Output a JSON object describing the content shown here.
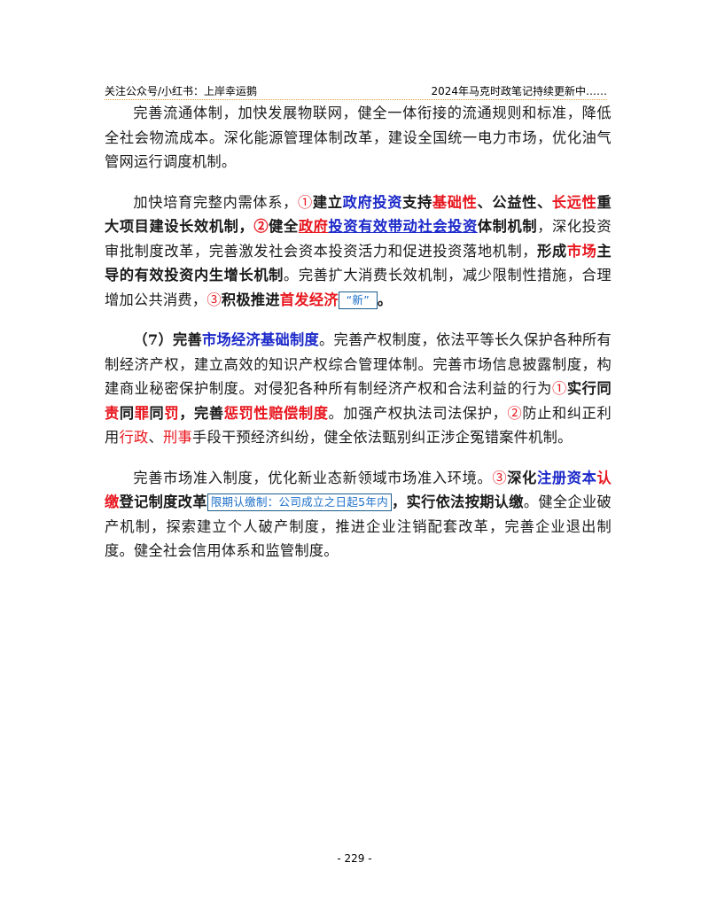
{
  "header": {
    "left": "关注公众号/小红书：上岸幸运鹅",
    "right": "2024年马克时政笔记持续更新中……"
  },
  "p1": {
    "text": "完善流通体制，加快发展物联网，健全一体衔接的流通规则和标准，降低全社会物流成本。深化能源管理体制改革，建设全国统一电力市场，优化油气管网运行调度机制。"
  },
  "p2": {
    "s1": "加快培育完整内需体系，",
    "m1": "①",
    "s2": "建立",
    "s3": "政府投资",
    "s4": "支持",
    "s5": "基础性",
    "s6": "、公益性、",
    "s7": "长远性",
    "s8": "重大项目建设长效机制，",
    "m2": "②",
    "s9": "健全",
    "s10": "政府",
    "s11": "投资有效带动社会投资",
    "s12": "体制机制",
    "s13": "，深化投资审批制度改革，完善激发社会资本投资活力和促进投资落地机制，",
    "s14": "形成",
    "s15": "市场",
    "s16": "主导的有效投资内生增长机制",
    "s17": "。完善扩大消费长效机制，减少限制性措施，合理增加公共消费，",
    "m3": "③",
    "s18": "积极推进",
    "s19": "首发经济",
    "note": "“新”",
    "s20": "。"
  },
  "p3": {
    "s1": "（7）完善",
    "s2": "市场经济基础制度",
    "s3": "。完善产权制度，依法平等长久保护各种所有制经济产权，建立高效的知识产权综合管理体制。完善市场信息披露制度，构建商业秘密保护制度。对侵犯各种所有制经济产权和合法利益的行为",
    "m1": "①",
    "s4": "实行同",
    "s5": "责",
    "s6": "同",
    "s7": "罪",
    "s8": "同",
    "s9": "罚",
    "s10": "，完善",
    "s11": "惩罚性赔偿制度",
    "s12": "。加强产权执法司法保护，",
    "m2": "②",
    "s13": "防止和纠正利用",
    "s14": "行政",
    "s15": "、",
    "s16": "刑事",
    "s17": "手段干预经济纠纷，健全依法甄别纠正涉企冤错案件机制。"
  },
  "p4": {
    "s1": "完善市场准入制度，优化新业态新领域市场准入环境。",
    "m1": "③",
    "s2": "深化",
    "s3": "注册资本",
    "s4": "认缴",
    "s5": "登记制度改革",
    "note": "限期认缴制：公司成立之日起5年内",
    "s6": "，实行依法按期认缴",
    "s7": "。健全企业破产机制，探索建立个人破产制度，推进企业注销配套改革，完善企业退出制度。健全社会信用体系和监管制度。"
  },
  "footer": {
    "page": "- 229 -"
  },
  "colors": {
    "red": "#e8161e",
    "blue": "#1b28c9",
    "header_rule": "#e3a13b",
    "note_border": "#1a5c8c"
  }
}
